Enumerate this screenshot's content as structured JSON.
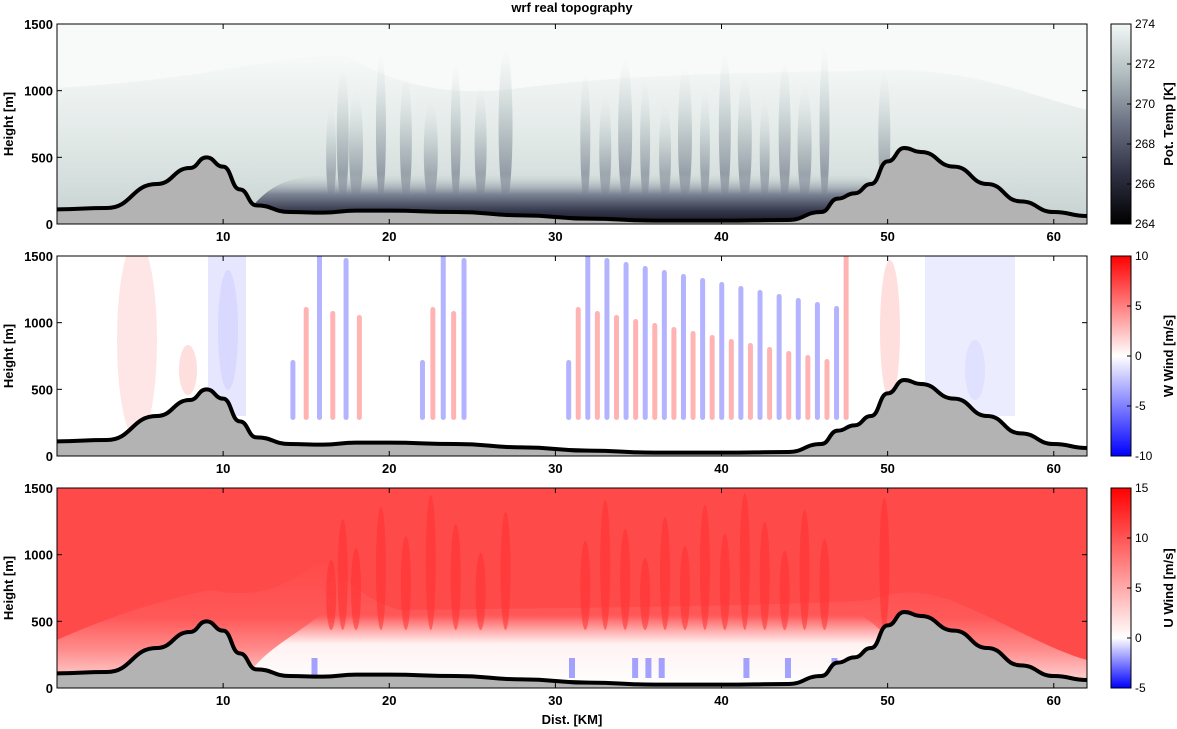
{
  "figure_title": "wrf real topography",
  "shared_xlabel": "Dist. [KM]",
  "colors": {
    "terrain_fill": "#b3b3b3",
    "terrain_line": "#000000",
    "temp_cold": "#000000",
    "temp_mid": "#3c3f54",
    "temp_warm": "#f4f8f7",
    "wind_negative": "#0000ff",
    "wind_zero": "#ffffff",
    "wind_positive": "#ff0000"
  },
  "chart_data": [
    {
      "type": "heatmap",
      "title": "wrf real topography",
      "xlabel": "",
      "ylabel": "Height [m]",
      "xlim": [
        0,
        62
      ],
      "ylim": [
        0,
        1500
      ],
      "xticks": [
        "10",
        "20",
        "30",
        "40",
        "50",
        "60"
      ],
      "yticks": [
        "0",
        "500",
        "1000",
        "1500"
      ],
      "colorbar": {
        "label": "Pot. Temp [K]",
        "range": [
          264,
          274
        ],
        "ticks": [
          "264",
          "266",
          "268",
          "270",
          "272",
          "274"
        ]
      },
      "terrain": {
        "x": [
          0,
          3,
          6,
          8,
          9,
          10,
          11,
          12,
          14,
          16,
          18,
          20,
          24,
          28,
          32,
          36,
          40,
          44,
          46,
          47,
          48,
          49,
          50,
          51,
          52,
          54,
          56,
          58,
          60,
          62
        ],
        "height": [
          110,
          120,
          300,
          420,
          500,
          430,
          260,
          140,
          90,
          85,
          100,
          100,
          90,
          65,
          40,
          25,
          25,
          30,
          90,
          190,
          230,
          300,
          470,
          570,
          540,
          430,
          300,
          170,
          90,
          60
        ]
      }
    },
    {
      "type": "heatmap",
      "title": "",
      "xlabel": "",
      "ylabel": "Height [m]",
      "xlim": [
        0,
        62
      ],
      "ylim": [
        0,
        1500
      ],
      "xticks": [
        "10",
        "20",
        "30",
        "40",
        "50",
        "60"
      ],
      "yticks": [
        "0",
        "500",
        "1000",
        "1500"
      ],
      "colorbar": {
        "label": "W Wind [m/s]",
        "range": [
          -10,
          10
        ],
        "ticks": [
          "-10",
          "-5",
          "0",
          "5",
          "10"
        ]
      }
    },
    {
      "type": "heatmap",
      "title": "",
      "xlabel": "Dist. [KM]",
      "ylabel": "Height [m]",
      "xlim": [
        0,
        62
      ],
      "ylim": [
        0,
        1500
      ],
      "xticks": [
        "10",
        "20",
        "30",
        "40",
        "50",
        "60"
      ],
      "yticks": [
        "0",
        "500",
        "1000",
        "1500"
      ],
      "colorbar": {
        "label": "U Wind [m/s]",
        "range": [
          -5,
          15
        ],
        "ticks": [
          "-5",
          "0",
          "5",
          "10",
          "15"
        ]
      }
    }
  ]
}
